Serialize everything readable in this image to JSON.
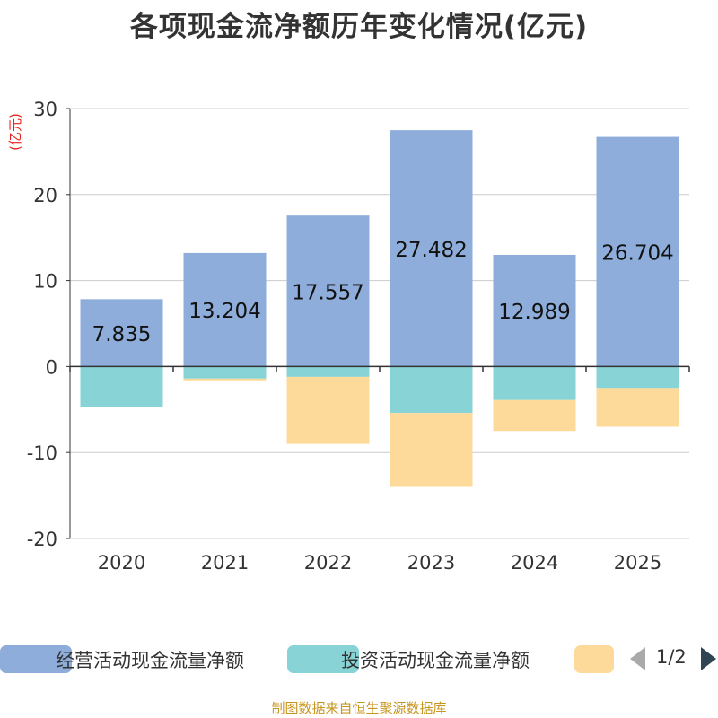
{
  "chart_data": {
    "type": "bar",
    "stacked": true,
    "title": "各项现金流净额历年变化情况(亿元)",
    "ylabel": "(亿元)",
    "xlabel": "",
    "ylim": [
      -20,
      30
    ],
    "yticks": [
      -20,
      -10,
      0,
      10,
      20,
      30
    ],
    "categories": [
      "2020",
      "2021",
      "2022",
      "2023",
      "2024",
      "2025"
    ],
    "series": [
      {
        "name": "经营活动现金流量净额",
        "color": "#8eadda",
        "values": [
          7.835,
          13.204,
          17.557,
          27.482,
          12.989,
          26.704
        ],
        "labels": [
          "7.835",
          "13.204",
          "17.557",
          "27.482",
          "12.989",
          "26.704"
        ]
      },
      {
        "name": "投资活动现金流量净额",
        "color": "#88d3d6",
        "values": [
          -4.7,
          -1.4,
          -1.2,
          -5.4,
          -3.9,
          -2.5
        ]
      },
      {
        "name": "",
        "color": "#fdd99a",
        "values": [
          0,
          -0.2,
          -7.8,
          -8.6,
          -3.6,
          -4.5
        ]
      }
    ],
    "grid": true,
    "legend_position": "bottom"
  },
  "pager": {
    "text": "1/2"
  },
  "source": "制图数据来自恒生聚源数据库"
}
